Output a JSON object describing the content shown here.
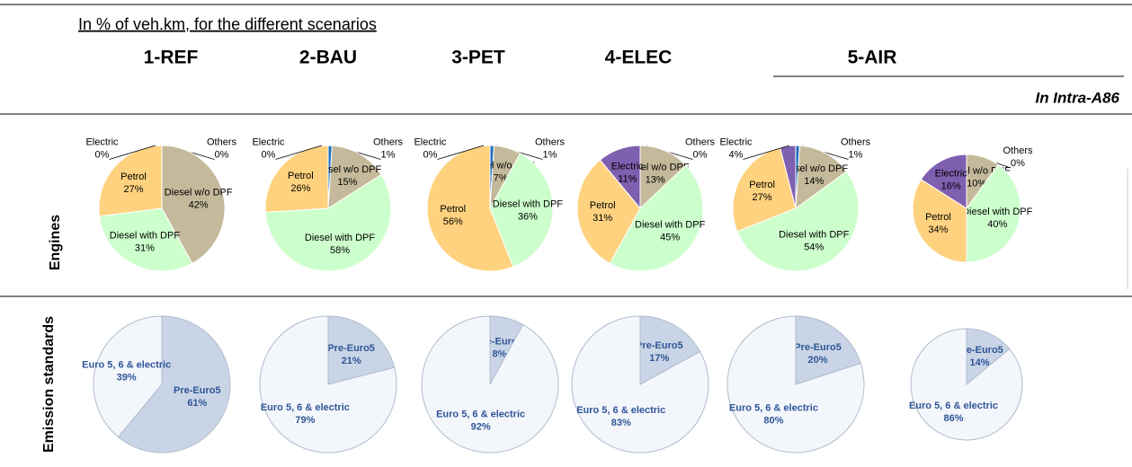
{
  "caption": "In % of veh.km, for the different scenarios",
  "scenarios": [
    "1-REF",
    "2-BAU",
    "3-PET",
    "4-ELEC",
    "5-AIR"
  ],
  "note": "In Intra-A86",
  "rows": [
    "Engines",
    "Emission standards"
  ],
  "chart_data": [
    {
      "type": "pie",
      "categories": [
        "Others",
        "Diesel w/o DPF",
        "Diesel with DPF",
        "Petrol",
        "Electric"
      ],
      "values": [
        0,
        42,
        31,
        27,
        0
      ],
      "value_labels": [
        "0%",
        "42%",
        "31%",
        "27%",
        "0%"
      ],
      "colors": [
        "#1f6fc0",
        "#c4b99a",
        "#ccffcc",
        "#ffd27f",
        "#7f5fb0"
      ]
    },
    {
      "type": "pie",
      "categories": [
        "Others",
        "Diesel w/o DPF",
        "Diesel with DPF",
        "Petrol",
        "Electric"
      ],
      "values": [
        1,
        15,
        58,
        26,
        0
      ],
      "value_labels": [
        "1%",
        "15%",
        "58%",
        "26%",
        "0%"
      ],
      "colors": [
        "#1f6fc0",
        "#c4b99a",
        "#ccffcc",
        "#ffd27f",
        "#7f5fb0"
      ]
    },
    {
      "type": "pie",
      "categories": [
        "Others",
        "Diesel w/o DPF",
        "Diesel with DPF",
        "Petrol",
        "Electric"
      ],
      "values": [
        1,
        7,
        36,
        56,
        0
      ],
      "value_labels": [
        "1%",
        "7%",
        "36%",
        "56%",
        "0%"
      ],
      "colors": [
        "#1f6fc0",
        "#c4b99a",
        "#ccffcc",
        "#ffd27f",
        "#7f5fb0"
      ]
    },
    {
      "type": "pie",
      "categories": [
        "Others",
        "Diesel w/o DPF",
        "Diesel with DPF",
        "Petrol",
        "Electric"
      ],
      "values": [
        0,
        13,
        45,
        31,
        11
      ],
      "value_labels": [
        "0%",
        "13%",
        "45%",
        "31%",
        "11%"
      ],
      "colors": [
        "#1f6fc0",
        "#c4b99a",
        "#ccffcc",
        "#ffd27f",
        "#7f5fb0"
      ]
    },
    {
      "type": "pie",
      "categories": [
        "Others",
        "Diesel w/o DPF",
        "Diesel with DPF",
        "Petrol",
        "Electric"
      ],
      "values": [
        1,
        14,
        54,
        27,
        4
      ],
      "value_labels": [
        "1%",
        "14%",
        "54%",
        "27%",
        "4%"
      ],
      "colors": [
        "#1f6fc0",
        "#c4b99a",
        "#ccffcc",
        "#ffd27f",
        "#7f5fb0"
      ]
    },
    {
      "type": "pie",
      "categories": [
        "Others",
        "Diesel w/o DPF",
        "Diesel with DPF",
        "Petrol",
        "Electric"
      ],
      "values": [
        0,
        10,
        40,
        34,
        16
      ],
      "value_labels": [
        "0%",
        "10%",
        "40%",
        "34%",
        "16%"
      ],
      "colors": [
        "#1f6fc0",
        "#c4b99a",
        "#ccffcc",
        "#ffd27f",
        "#7f5fb0"
      ]
    },
    {
      "type": "pie",
      "categories": [
        "Pre-Euro5",
        "Euro 5, 6 & electric"
      ],
      "values": [
        61,
        39
      ],
      "value_labels": [
        "61%",
        "39%"
      ],
      "colors": [
        "#c9d5e6",
        "#f3f6fb"
      ]
    },
    {
      "type": "pie",
      "categories": [
        "Pre-Euro5",
        "Euro 5, 6 & electric"
      ],
      "values": [
        21,
        79
      ],
      "value_labels": [
        "21%",
        "79%"
      ],
      "colors": [
        "#c9d5e6",
        "#f3f6fb"
      ]
    },
    {
      "type": "pie",
      "categories": [
        "Pre-Euro5",
        "Euro 5, 6 & electric"
      ],
      "values": [
        8,
        92
      ],
      "value_labels": [
        "8%",
        "92%"
      ],
      "colors": [
        "#c9d5e6",
        "#f3f6fb"
      ]
    },
    {
      "type": "pie",
      "categories": [
        "Pre-Euro5",
        "Euro 5, 6 & electric"
      ],
      "values": [
        17,
        83
      ],
      "value_labels": [
        "17%",
        "83%"
      ],
      "colors": [
        "#c9d5e6",
        "#f3f6fb"
      ]
    },
    {
      "type": "pie",
      "categories": [
        "Pre-Euro5",
        "Euro 5, 6 & electric"
      ],
      "values": [
        20,
        80
      ],
      "value_labels": [
        "20%",
        "80%"
      ],
      "colors": [
        "#c9d5e6",
        "#f3f6fb"
      ]
    },
    {
      "type": "pie",
      "categories": [
        "Pre-Euro5",
        "Euro 5, 6 & electric"
      ],
      "values": [
        14,
        86
      ],
      "value_labels": [
        "14%",
        "86%"
      ],
      "colors": [
        "#c9d5e6",
        "#f3f6fb"
      ]
    }
  ]
}
